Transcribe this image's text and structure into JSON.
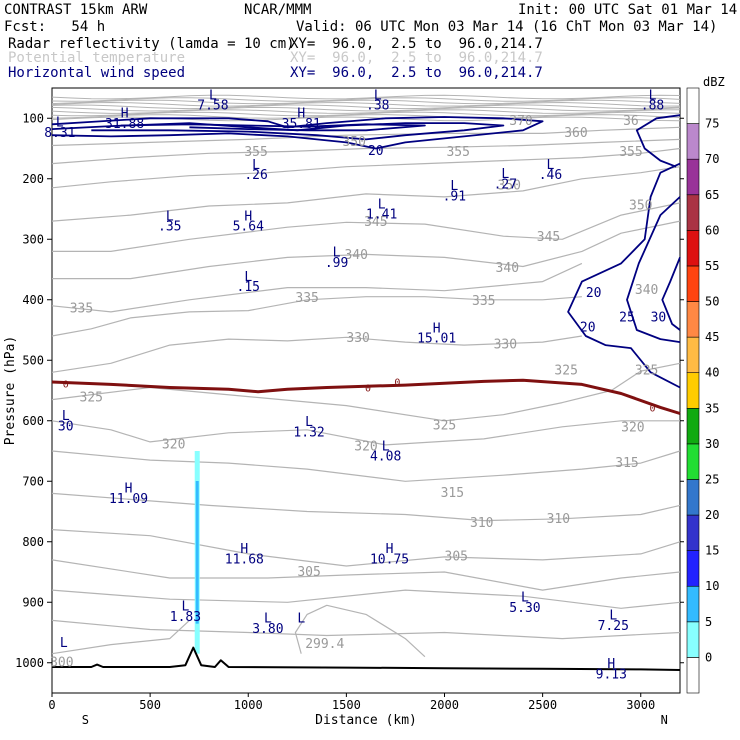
{
  "header": {
    "title_left": "CONTRAST 15km ARW",
    "title_center": "NCAR/MMM",
    "init": "Init: 00 UTC Sat 01 Mar 14",
    "fcst": "Fcst:   54 h",
    "valid": "Valid: 06 UTC Mon 03 Mar 14 (16 ChT Mon 03 Mar 14)",
    "field1_name": "Radar reflectivity (lamda = 10 cm)",
    "field1_xy": "XY=  96.0,  2.5 to  96.0,214.7",
    "field2_name": "Potential temperature",
    "field2_xy": "XY=  96.0,  2.5 to  96.0,214.7",
    "field3_name": "Horizontal wind speed",
    "field3_xy": "XY=  96.0,  2.5 to  96.0,214.7"
  },
  "colors": {
    "theta": "#b4b4b4",
    "wind": "#000080",
    "zero_isotherm": "#7f1010",
    "terrain": "#000000",
    "text_blue": "#00007f"
  },
  "chart_data": {
    "type": "cross-section",
    "xlabel": "Distance (km)",
    "ylabel": "Pressure (hPa)",
    "xlim": [
      0,
      3200
    ],
    "ylim": [
      1050,
      50
    ],
    "x_ticks": [
      0,
      500,
      1000,
      1500,
      2000,
      2500,
      3000
    ],
    "y_ticks": [
      100,
      200,
      300,
      400,
      500,
      600,
      700,
      800,
      900,
      1000
    ],
    "x_end_labels": {
      "left": "S",
      "right": "N"
    },
    "colorbar": {
      "unit": "dBZ",
      "levels": [
        0,
        5,
        10,
        15,
        20,
        25,
        30,
        35,
        40,
        45,
        50,
        55,
        60,
        65,
        70,
        75
      ],
      "colors": [
        "#ffffff",
        "#88ffff",
        "#33bbff",
        "#2222ff",
        "#3333cc",
        "#3377cc",
        "#22dd33",
        "#11aa11",
        "#ffcc00",
        "#ffbb44",
        "#ff8844",
        "#ff4411",
        "#dd1111",
        "#aa3344",
        "#993399",
        "#bb88cc",
        "#ffffff"
      ]
    },
    "theta_labels": [
      {
        "text": "370",
        "x": 2390,
        "p": 105
      },
      {
        "text": "360",
        "x": 2670,
        "p": 125
      },
      {
        "text": "36",
        "x": 2950,
        "p": 105
      },
      {
        "text": "355",
        "x": 1040,
        "p": 157
      },
      {
        "text": "355",
        "x": 2070,
        "p": 157
      },
      {
        "text": "355",
        "x": 2950,
        "p": 157
      },
      {
        "text": "350",
        "x": 1540,
        "p": 140
      },
      {
        "text": "350",
        "x": 2330,
        "p": 212
      },
      {
        "text": "350",
        "x": 3000,
        "p": 245
      },
      {
        "text": "345",
        "x": 1650,
        "p": 272
      },
      {
        "text": "345",
        "x": 2530,
        "p": 297
      },
      {
        "text": "340",
        "x": 1550,
        "p": 327
      },
      {
        "text": "340",
        "x": 2320,
        "p": 348
      },
      {
        "text": "340",
        "x": 3030,
        "p": 385
      },
      {
        "text": "335",
        "x": 1300,
        "p": 398
      },
      {
        "text": "335",
        "x": 2200,
        "p": 403
      },
      {
        "text": "335",
        "x": 150,
        "p": 415
      },
      {
        "text": "330",
        "x": 1560,
        "p": 464
      },
      {
        "text": "330",
        "x": 2310,
        "p": 475
      },
      {
        "text": "325",
        "x": 3030,
        "p": 518
      },
      {
        "text": "325",
        "x": 2620,
        "p": 518
      },
      {
        "text": "325",
        "x": 2000,
        "p": 609
      },
      {
        "text": "325",
        "x": 200,
        "p": 562
      },
      {
        "text": "320",
        "x": 2960,
        "p": 612
      },
      {
        "text": "320",
        "x": 620,
        "p": 640
      },
      {
        "text": "320",
        "x": 1600,
        "p": 643
      },
      {
        "text": "315",
        "x": 2930,
        "p": 671
      },
      {
        "text": "315",
        "x": 2040,
        "p": 720
      },
      {
        "text": "310",
        "x": 2580,
        "p": 763
      },
      {
        "text": "310",
        "x": 2190,
        "p": 770
      },
      {
        "text": "305",
        "x": 2060,
        "p": 825
      },
      {
        "text": "305",
        "x": 1310,
        "p": 851
      },
      {
        "text": "299.4",
        "x": 1390,
        "p": 970
      },
      {
        "text": "300",
        "x": 50,
        "p": 1000
      }
    ],
    "wind_labels": [
      {
        "text": "20",
        "x": 1650,
        "p": 155
      },
      {
        "text": "20",
        "x": 2760,
        "p": 390
      },
      {
        "text": "20",
        "x": 2730,
        "p": 447
      },
      {
        "text": "25",
        "x": 2930,
        "p": 430
      },
      {
        "text": "30",
        "x": 3090,
        "p": 430
      }
    ],
    "zero_labels": [
      {
        "text": "0",
        "x": 70,
        "p": 540
      },
      {
        "text": "0",
        "x": 1610,
        "p": 547
      },
      {
        "text": "0",
        "x": 1760,
        "p": 537
      },
      {
        "text": "0",
        "x": 3060,
        "p": 580
      }
    ],
    "extrema": [
      {
        "type": "L",
        "value": "7.58",
        "x": 820,
        "p": 80
      },
      {
        "type": "L",
        "value": ".38",
        "x": 1660,
        "p": 80
      },
      {
        "type": "L",
        "value": ".88",
        "x": 3060,
        "p": 80
      },
      {
        "type": "H",
        "value": "31.88",
        "x": 370,
        "p": 110
      },
      {
        "type": "H",
        "value": "35.81",
        "x": 1270,
        "p": 110
      },
      {
        "type": "L",
        "value": "8.31",
        "x": 40,
        "p": 125
      },
      {
        "type": "L",
        "value": ".26",
        "x": 1040,
        "p": 195
      },
      {
        "type": "L",
        "value": ".46",
        "x": 2540,
        "p": 195
      },
      {
        "type": "L",
        "value": ".27",
        "x": 2310,
        "p": 210
      },
      {
        "type": "L",
        "value": ".91",
        "x": 2050,
        "p": 230
      },
      {
        "type": "L",
        "value": "1.41",
        "x": 1680,
        "p": 260
      },
      {
        "type": "L",
        "value": ".35",
        "x": 600,
        "p": 280
      },
      {
        "type": "H",
        "value": "5.64",
        "x": 1000,
        "p": 280
      },
      {
        "type": "L",
        "value": ".99",
        "x": 1450,
        "p": 340
      },
      {
        "type": "L",
        "value": ".15",
        "x": 1000,
        "p": 380
      },
      {
        "type": "H",
        "value": "15.01",
        "x": 1960,
        "p": 465
      },
      {
        "type": "L",
        "value": "30",
        "x": 70,
        "p": 610
      },
      {
        "type": "L",
        "value": "1.32",
        "x": 1310,
        "p": 620
      },
      {
        "type": "L",
        "value": "4.08",
        "x": 1700,
        "p": 660
      },
      {
        "type": "H",
        "value": "11.09",
        "x": 390,
        "p": 730
      },
      {
        "type": "H",
        "value": "11.68",
        "x": 980,
        "p": 830
      },
      {
        "type": "H",
        "value": "10.75",
        "x": 1720,
        "p": 830
      },
      {
        "type": "L",
        "value": "1.83",
        "x": 680,
        "p": 925
      },
      {
        "type": "L",
        "value": "3.80",
        "x": 1100,
        "p": 945
      },
      {
        "type": "L",
        "value": "5.30",
        "x": 2410,
        "p": 910
      },
      {
        "type": "L",
        "value": "7.25",
        "x": 2860,
        "p": 940
      },
      {
        "type": "H",
        "value": "9.13",
        "x": 2850,
        "p": 1020
      },
      {
        "type": "L",
        "value": "",
        "x": 60,
        "p": 985
      },
      {
        "type": "L",
        "value": "",
        "x": 1270,
        "p": 945
      }
    ],
    "terrain_profile": [
      [
        0,
        1007
      ],
      [
        200,
        1007
      ],
      [
        230,
        1003
      ],
      [
        260,
        1007
      ],
      [
        600,
        1007
      ],
      [
        680,
        1004
      ],
      [
        720,
        975
      ],
      [
        760,
        1004
      ],
      [
        830,
        1007
      ],
      [
        860,
        996
      ],
      [
        900,
        1007
      ],
      [
        1500,
        1008
      ],
      [
        2000,
        1009
      ],
      [
        2500,
        1010
      ],
      [
        3000,
        1011
      ],
      [
        3200,
        1012
      ]
    ],
    "zero_isotherm": [
      [
        0,
        536
      ],
      [
        300,
        540
      ],
      [
        600,
        545
      ],
      [
        900,
        548
      ],
      [
        1050,
        552
      ],
      [
        1200,
        548
      ],
      [
        1400,
        545
      ],
      [
        1600,
        543
      ],
      [
        1800,
        541
      ],
      [
        2000,
        538
      ],
      [
        2200,
        535
      ],
      [
        2400,
        533
      ],
      [
        2700,
        540
      ],
      [
        2900,
        555
      ],
      [
        3100,
        578
      ],
      [
        3200,
        588
      ]
    ],
    "reflectivity_column": {
      "x": 740,
      "p_top": 650,
      "p_bottom": 985,
      "dbz": 8
    }
  }
}
